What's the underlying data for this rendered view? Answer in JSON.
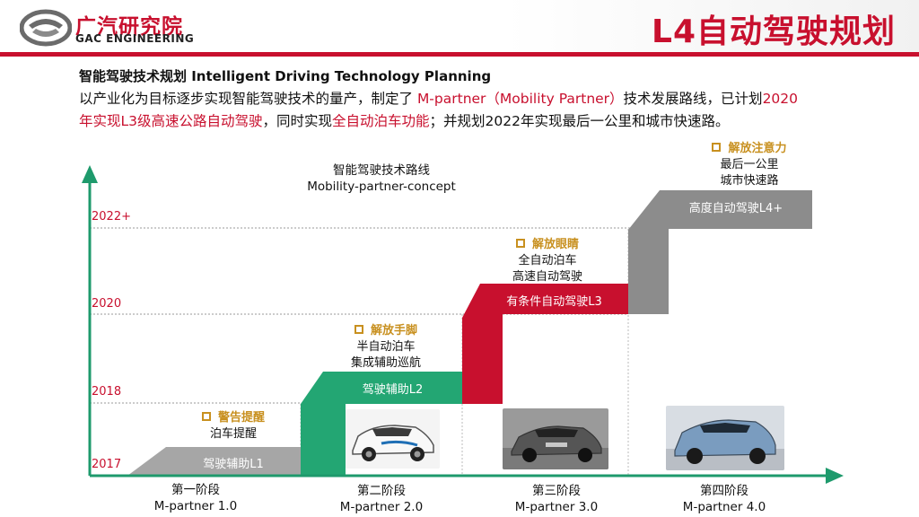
{
  "header": {
    "logo_cn": "广汽研究院",
    "logo_en": "GAC ENGINEERING",
    "title": "L4自动驾驶规划"
  },
  "intro": {
    "subtitle": "智能驾驶技术规划 Intelligent Driving Technology Planning",
    "line1_a": "以产业化为目标逐步实现智能驾驶技术的量产，制定了 ",
    "line1_b": "M-partner（Mobility Partner）",
    "line1_c": "技术发展路线，已计划",
    "line1_d": "2020",
    "line2_a": "年实现L3级高速公路自动驾驶",
    "line2_b": "，同时实现",
    "line2_c": "全自动泊车功能",
    "line2_d": "；并规划2022年实现最后一公里和城市快速路。"
  },
  "roadmap": {
    "title_cn": "智能驾驶技术路线",
    "title_en": "Mobility-partner-concept",
    "years": [
      "2017",
      "2018",
      "2020",
      "2022+"
    ],
    "stages": [
      {
        "name": "第一阶段",
        "version": "M-partner 1.0",
        "bar": "驾驶辅助L1",
        "note_head": "警告提醒",
        "note_lines": [
          "泊车提醒"
        ]
      },
      {
        "name": "第二阶段",
        "version": "M-partner 2.0",
        "bar": "驾驶辅助L2",
        "note_head": "解放手脚",
        "note_lines": [
          "半自动泊车",
          "集成辅助巡航"
        ]
      },
      {
        "name": "第三阶段",
        "version": "M-partner 3.0",
        "bar": "有条件自动驾驶L3",
        "note_head": "解放眼睛",
        "note_lines": [
          "全自动泊车",
          "高速自动驾驶"
        ]
      },
      {
        "name": "第四阶段",
        "version": "M-partner 4.0",
        "bar": "高度自动驾驶L4+",
        "note_head": "解放注意力",
        "note_lines": [
          "最后一公里",
          "城市快速路"
        ]
      }
    ]
  },
  "colors": {
    "brand_red": "#c8102e",
    "axis_green": "#1e9a6c",
    "l1_gray": "#a6a6a6",
    "l2_green": "#23a673",
    "l3_red": "#c8102e",
    "l4_gray": "#8c8c8c",
    "note_gold": "#c8901f"
  }
}
